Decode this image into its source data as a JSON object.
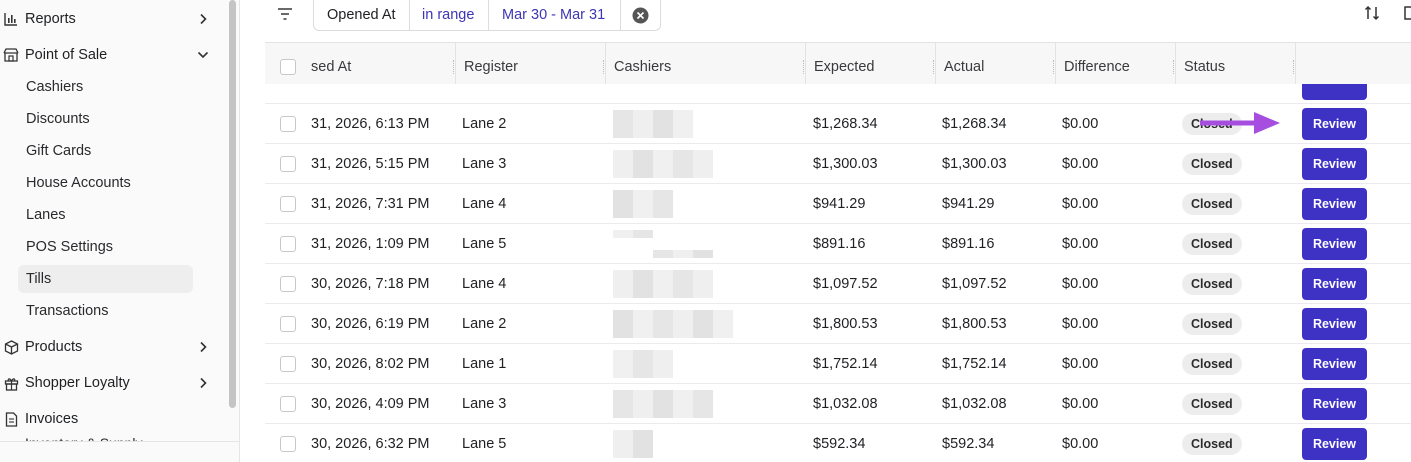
{
  "sidebar": {
    "top_items": [
      {
        "label": "Reports",
        "icon": "bar-chart-icon",
        "chev": "chevron-right-icon"
      },
      {
        "label": "Point of Sale",
        "icon": "store-icon",
        "chev": "chevron-down-icon"
      }
    ],
    "sub_items": [
      "Cashiers",
      "Discounts",
      "Gift Cards",
      "House Accounts",
      "Lanes",
      "POS Settings",
      "Tills",
      "Transactions"
    ],
    "active_sub": "Tills",
    "bottom_items": [
      {
        "label": "Products",
        "icon": "box-icon",
        "chev": "chevron-right-icon"
      },
      {
        "label": "Shopper Loyalty",
        "icon": "gift-icon",
        "chev": "chevron-right-icon"
      },
      {
        "label": "Invoices",
        "icon": "document-icon",
        "chev": ""
      }
    ],
    "cut_off_label": "Inventory & Supply"
  },
  "filter": {
    "field": "Opened At",
    "operator": "in range",
    "value": "Mar 30 - Mar 31"
  },
  "table": {
    "columns": [
      "sed At",
      "Register",
      "Cashiers",
      "Expected",
      "Actual",
      "Difference",
      "Status"
    ],
    "review_label": "Review",
    "rows": [
      {
        "opened": "31, 2026, 6:13 PM",
        "register": "Lane 2",
        "expected": "$1,268.34",
        "actual": "$1,268.34",
        "difference": "$0.00",
        "status": "Closed"
      },
      {
        "opened": "31, 2026, 5:15 PM",
        "register": "Lane 3",
        "expected": "$1,300.03",
        "actual": "$1,300.03",
        "difference": "$0.00",
        "status": "Closed"
      },
      {
        "opened": "31, 2026, 7:31 PM",
        "register": "Lane 4",
        "expected": "$941.29",
        "actual": "$941.29",
        "difference": "$0.00",
        "status": "Closed"
      },
      {
        "opened": "31, 2026, 1:09 PM",
        "register": "Lane 5",
        "expected": "$891.16",
        "actual": "$891.16",
        "difference": "$0.00",
        "status": "Closed"
      },
      {
        "opened": "30, 2026, 7:18 PM",
        "register": "Lane 4",
        "expected": "$1,097.52",
        "actual": "$1,097.52",
        "difference": "$0.00",
        "status": "Closed"
      },
      {
        "opened": "30, 2026, 6:19 PM",
        "register": "Lane 2",
        "expected": "$1,800.53",
        "actual": "$1,800.53",
        "difference": "$0.00",
        "status": "Closed"
      },
      {
        "opened": "30, 2026, 8:02 PM",
        "register": "Lane 1",
        "expected": "$1,752.14",
        "actual": "$1,752.14",
        "difference": "$0.00",
        "status": "Closed"
      },
      {
        "opened": "30, 2026, 4:09 PM",
        "register": "Lane 3",
        "expected": "$1,032.08",
        "actual": "$1,032.08",
        "difference": "$0.00",
        "status": "Closed"
      },
      {
        "opened": "30, 2026, 6:32 PM",
        "register": "Lane 5",
        "expected": "$592.34",
        "actual": "$592.34",
        "difference": "$0.00",
        "status": "Closed"
      }
    ]
  },
  "colors": {
    "accent": "#3d32c4",
    "filter_value": "#3d35b5",
    "annotation_arrow": "#a54ee0"
  }
}
